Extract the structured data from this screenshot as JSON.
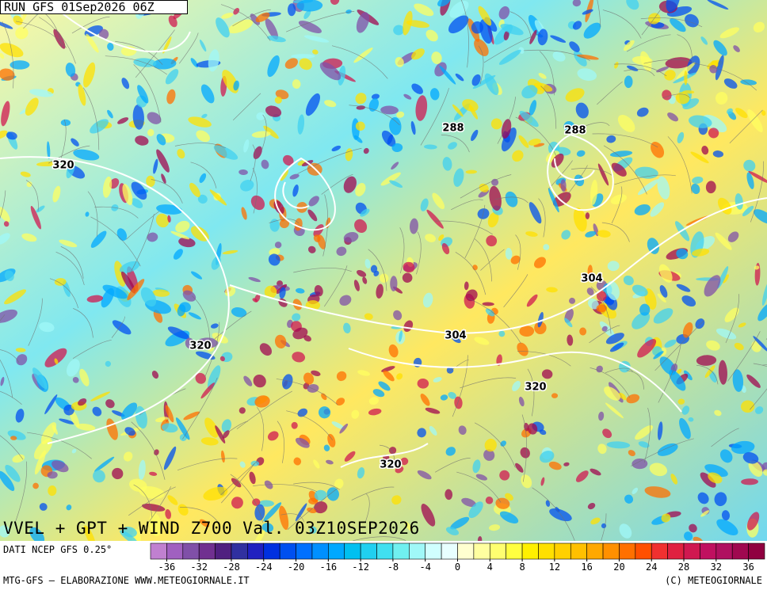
{
  "header": {
    "run": "RUN GFS 01Sep2026 06Z"
  },
  "contour_labels": [
    "288",
    "288",
    "320",
    "320",
    "304",
    "304",
    "320",
    "320"
  ],
  "title": "VVEL + GPT + WIND Z700 Val. 03Z10SEP2026",
  "source": "DATI NCEP GFS 0.25°",
  "footer": {
    "left": "MTG-GFS — ELABORAZIONE WWW.METEOGIORNALE.IT",
    "right": "(C) METEOGIORNALE"
  },
  "colorbar": {
    "lim": [
      -38,
      38
    ],
    "ticks": [
      -36,
      -32,
      -28,
      -24,
      -20,
      -16,
      -12,
      -8,
      -4,
      0,
      4,
      8,
      12,
      16,
      20,
      24,
      28,
      32,
      36
    ],
    "colors": [
      "#c080d0",
      "#a060c0",
      "#8050a8",
      "#703090",
      "#502080",
      "#3030a0",
      "#2020c0",
      "#0030e0",
      "#0050f0",
      "#0070ff",
      "#0090ff",
      "#00a8ff",
      "#00c0f0",
      "#20d0f0",
      "#40e0f0",
      "#70f0f0",
      "#a0f8f8",
      "#d0ffff",
      "#e8ffff",
      "#ffffd0",
      "#ffffa0",
      "#ffff70",
      "#ffff40",
      "#fff000",
      "#ffe000",
      "#ffd000",
      "#ffc000",
      "#ffa800",
      "#ff9000",
      "#ff7000",
      "#ff5000",
      "#f03030",
      "#e02040",
      "#d01850",
      "#c01060",
      "#b01060",
      "#a00850",
      "#900040"
    ]
  }
}
